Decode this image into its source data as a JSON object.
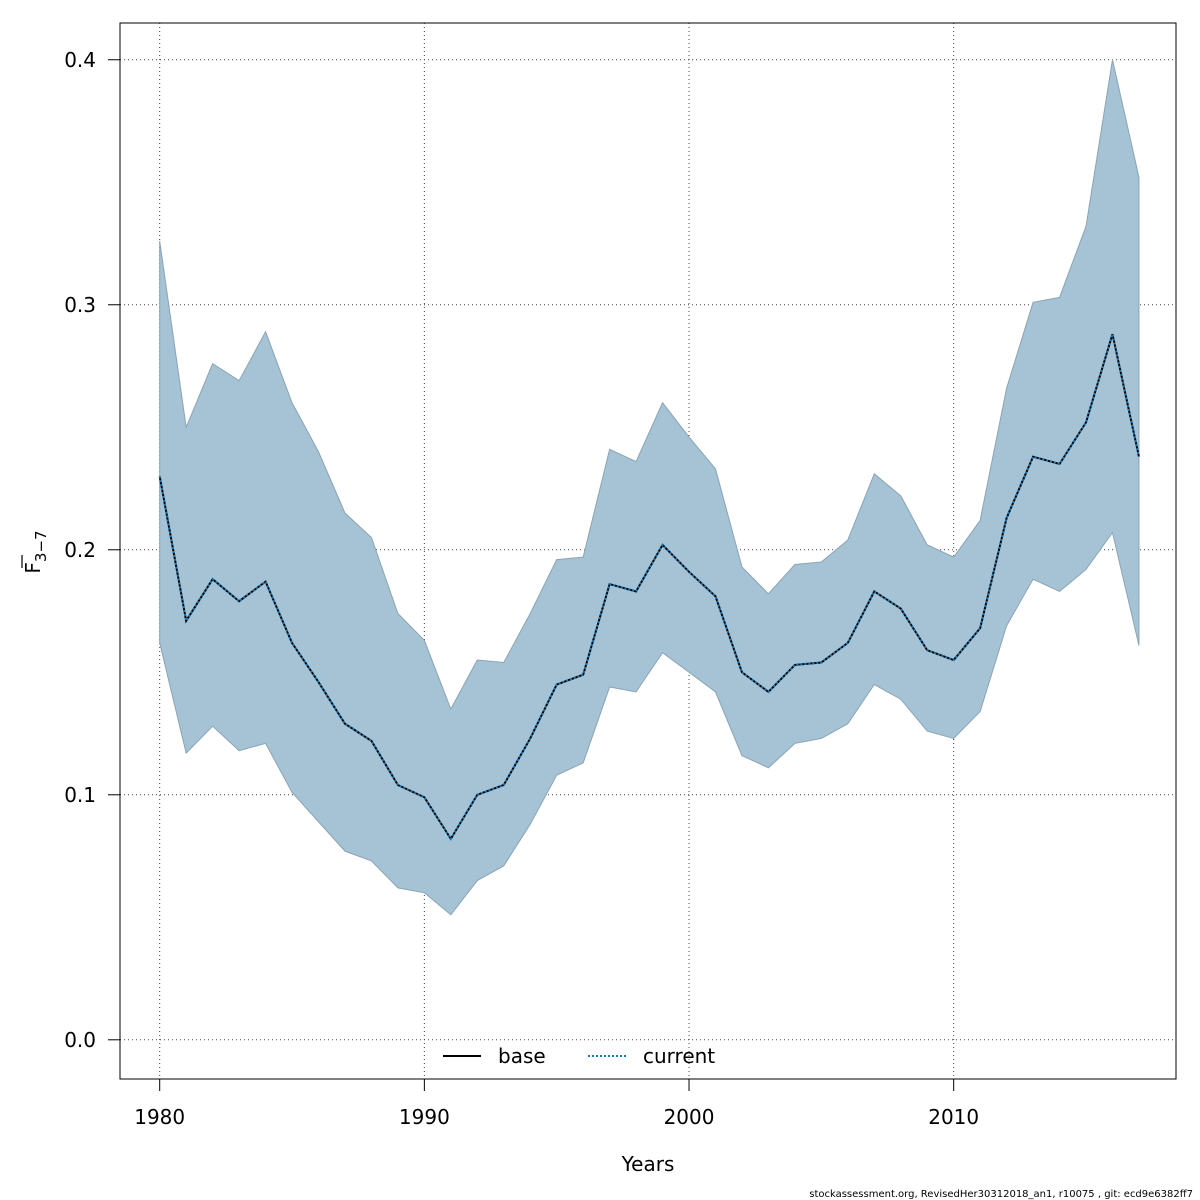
{
  "chart_data": {
    "type": "line",
    "xlabel": "Years",
    "ylabel": {
      "base": "F",
      "sub": "3−7"
    },
    "xlim": [
      1978.5,
      2018.4
    ],
    "ylim": [
      -0.016,
      0.415
    ],
    "x_ticks": [
      1980,
      1990,
      2000,
      2010
    ],
    "y_ticks": [
      0.0,
      0.1,
      0.2,
      0.3,
      0.4
    ],
    "y_tick_labels": [
      "0.0",
      "0.1",
      "0.2",
      "0.3",
      "0.4"
    ],
    "grid": true,
    "legend_position": "bottom-center",
    "x": [
      1980,
      1981,
      1982,
      1983,
      1984,
      1985,
      1986,
      1987,
      1988,
      1989,
      1990,
      1991,
      1992,
      1993,
      1994,
      1995,
      1996,
      1997,
      1998,
      1999,
      2000,
      2001,
      2002,
      2003,
      2004,
      2005,
      2006,
      2007,
      2008,
      2009,
      2010,
      2011,
      2012,
      2013,
      2014,
      2015,
      2016,
      2017
    ],
    "band": {
      "color": "#a5c3d5",
      "upper": [
        0.326,
        0.25,
        0.276,
        0.269,
        0.289,
        0.26,
        0.24,
        0.215,
        0.205,
        0.174,
        0.163,
        0.135,
        0.155,
        0.154,
        0.174,
        0.196,
        0.197,
        0.241,
        0.236,
        0.26,
        0.246,
        0.233,
        0.193,
        0.182,
        0.194,
        0.195,
        0.204,
        0.231,
        0.222,
        0.202,
        0.197,
        0.212,
        0.266,
        0.301,
        0.303,
        0.332,
        0.4,
        0.352
      ],
      "lower": [
        0.162,
        0.117,
        0.128,
        0.118,
        0.121,
        0.101,
        0.089,
        0.077,
        0.073,
        0.062,
        0.06,
        0.051,
        0.065,
        0.071,
        0.088,
        0.108,
        0.113,
        0.144,
        0.142,
        0.158,
        0.15,
        0.142,
        0.116,
        0.111,
        0.121,
        0.123,
        0.129,
        0.145,
        0.139,
        0.126,
        0.123,
        0.134,
        0.169,
        0.188,
        0.183,
        0.192,
        0.207,
        0.161
      ]
    },
    "series": [
      {
        "name": "base",
        "style": "solid",
        "color": "#000000",
        "values": [
          0.23,
          0.171,
          0.188,
          0.179,
          0.187,
          0.162,
          0.146,
          0.129,
          0.122,
          0.104,
          0.099,
          0.082,
          0.1,
          0.104,
          0.123,
          0.145,
          0.149,
          0.186,
          0.183,
          0.202,
          0.191,
          0.181,
          0.15,
          0.142,
          0.153,
          0.154,
          0.162,
          0.183,
          0.176,
          0.159,
          0.155,
          0.168,
          0.213,
          0.238,
          0.235,
          0.252,
          0.288,
          0.238
        ]
      },
      {
        "name": "current",
        "style": "dotted",
        "color": "#1f77b4",
        "values": [
          0.23,
          0.171,
          0.188,
          0.179,
          0.187,
          0.162,
          0.146,
          0.129,
          0.122,
          0.104,
          0.099,
          0.082,
          0.1,
          0.104,
          0.123,
          0.145,
          0.149,
          0.186,
          0.183,
          0.202,
          0.191,
          0.181,
          0.15,
          0.142,
          0.153,
          0.154,
          0.162,
          0.183,
          0.176,
          0.159,
          0.155,
          0.168,
          0.213,
          0.238,
          0.235,
          0.252,
          0.288,
          0.238
        ]
      }
    ]
  },
  "legend": {
    "base": "base",
    "current": "current"
  },
  "footer": "stockassessment.org, RevisedHer30312018_an1, r10075 , git: ecd9e6382ff7"
}
